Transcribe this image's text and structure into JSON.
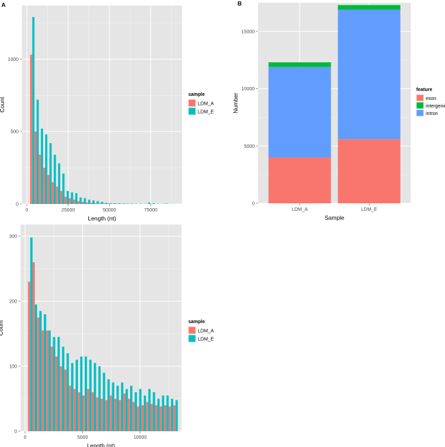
{
  "chart_data": [
    {
      "panel": "A",
      "type": "histogram",
      "xlabel": "Length (nt)",
      "ylabel": "Count",
      "xlim": [
        -3000,
        94000
      ],
      "ylim": [
        0,
        1370
      ],
      "xticks": [
        0,
        25000,
        50000,
        75000
      ],
      "xtick_labels": [
        "0",
        "25000",
        "50000",
        "75000"
      ],
      "yticks": [
        0,
        500,
        1000
      ],
      "ytick_labels": [
        "0",
        "500",
        "1000"
      ],
      "bin_width": 2600,
      "bin_starts": [
        2000,
        4600,
        7200,
        9800,
        12400,
        15000,
        17600,
        20200,
        22800,
        25400,
        28000,
        30600,
        33200,
        35800,
        38400,
        41000,
        43600,
        46200,
        48800,
        51400,
        54000,
        56600,
        59200,
        61800,
        64400,
        67000,
        69600,
        72200,
        74800,
        77400,
        80000,
        82600,
        85200
      ],
      "series": [
        {
          "name": "LDM_A",
          "color": "#F8766D",
          "values": [
            1030,
            500,
            340,
            250,
            200,
            150,
            120,
            90,
            50,
            40,
            30,
            20,
            15,
            10,
            8,
            6,
            5,
            4,
            3,
            3,
            2,
            2,
            1,
            1,
            1,
            0,
            0,
            1,
            1,
            0,
            0,
            1,
            0
          ]
        },
        {
          "name": "LDM_E",
          "color": "#00BFC4",
          "values": [
            1290,
            720,
            520,
            480,
            420,
            340,
            280,
            210,
            90,
            80,
            75,
            45,
            40,
            30,
            25,
            20,
            15,
            8,
            6,
            5,
            5,
            4,
            3,
            3,
            2,
            2,
            1,
            10,
            5,
            2,
            1,
            3,
            1
          ]
        }
      ],
      "legend": {
        "title": "sample",
        "entries": [
          "LDM_A",
          "LDM_E"
        ],
        "position": "right"
      }
    },
    {
      "panel": "B",
      "type": "stacked-bar",
      "xlabel": "Sample",
      "ylabel": "Number",
      "categories": [
        "LDM_A",
        "LDM_E"
      ],
      "ylim": [
        0,
        17500
      ],
      "yticks": [
        0,
        5000,
        10000,
        15000
      ],
      "ytick_labels": [
        "0",
        "5000",
        "10000",
        "15000"
      ],
      "series": [
        {
          "name": "exon",
          "color": "#F8766D",
          "values": [
            4000,
            5600
          ]
        },
        {
          "name": "intron",
          "color": "#619CFF",
          "values": [
            7900,
            11300
          ]
        },
        {
          "name": "intergenic",
          "color": "#00BA38",
          "values": [
            400,
            400
          ]
        }
      ],
      "legend": {
        "title": "feature",
        "entries": [
          "exon",
          "intergenic",
          "intron"
        ],
        "position": "right"
      }
    },
    {
      "panel": "",
      "type": "histogram",
      "xlabel": "Length (nt)",
      "ylabel": "Count",
      "xlim": [
        -400,
        13600
      ],
      "ylim": [
        0,
        318
      ],
      "xticks": [
        0,
        5000,
        10000
      ],
      "xtick_labels": [
        "0",
        "5000",
        "10000"
      ],
      "yticks": [
        0,
        100,
        200,
        300
      ],
      "ytick_labels": [
        "0",
        "100",
        "200",
        "300"
      ],
      "bin_width": 395,
      "bin_starts": [
        250,
        645,
        1040,
        1435,
        1830,
        2225,
        2620,
        3015,
        3410,
        3805,
        4200,
        4595,
        4990,
        5385,
        5780,
        6175,
        6570,
        6965,
        7360,
        7755,
        8150,
        8545,
        8940,
        9335,
        9730,
        10125,
        10520,
        10915,
        11310,
        11705,
        12100,
        12495,
        12890
      ],
      "series": [
        {
          "name": "LDM_A",
          "color": "#F8766D",
          "values": [
            230,
            260,
            175,
            155,
            155,
            130,
            115,
            100,
            95,
            70,
            65,
            60,
            55,
            65,
            60,
            52,
            50,
            48,
            55,
            50,
            48,
            58,
            50,
            45,
            38,
            40,
            45,
            42,
            40,
            38,
            40,
            38,
            40
          ]
        },
        {
          "name": "LDM_E",
          "color": "#00BFC4",
          "values": [
            298,
            195,
            185,
            180,
            155,
            145,
            145,
            130,
            120,
            105,
            110,
            115,
            115,
            110,
            105,
            100,
            90,
            80,
            75,
            70,
            75,
            65,
            70,
            60,
            65,
            55,
            65,
            60,
            50,
            55,
            55,
            50,
            48
          ]
        }
      ],
      "legend": {
        "title": "sample",
        "entries": [
          "LDM_A",
          "LDM_E"
        ],
        "position": "right"
      }
    }
  ]
}
